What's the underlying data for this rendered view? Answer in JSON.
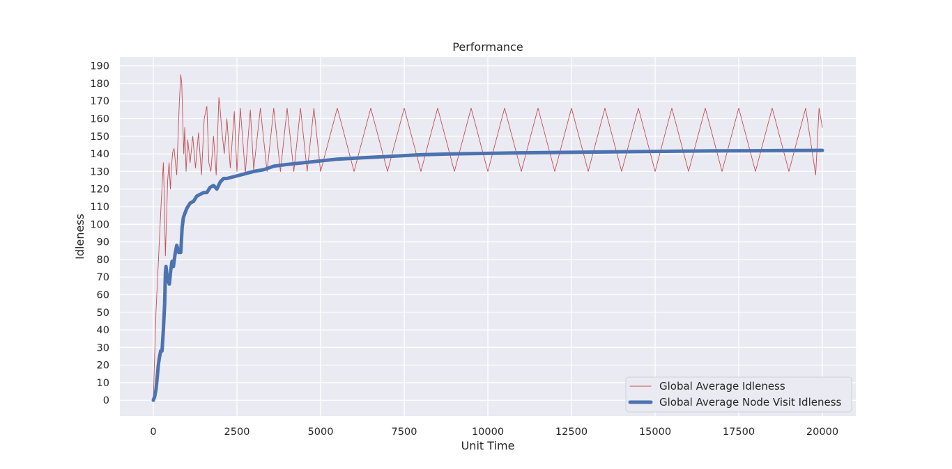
{
  "chart_data": {
    "type": "line",
    "title": "Performance",
    "xlabel": "Unit Time",
    "ylabel": "Idleness",
    "xlim": [
      -1000,
      21000
    ],
    "ylim": [
      -9,
      195
    ],
    "xticks": [
      0,
      2500,
      5000,
      7500,
      10000,
      12500,
      15000,
      17500,
      20000
    ],
    "yticks": [
      0,
      10,
      20,
      30,
      40,
      50,
      60,
      70,
      80,
      90,
      100,
      110,
      120,
      130,
      140,
      150,
      160,
      170,
      180,
      190
    ],
    "grid": true,
    "legend_position": "lower-right",
    "background": "#eaeaf2",
    "series": [
      {
        "name": "Global Average Idleness",
        "color": "#c44e52",
        "style": "thin",
        "x": [
          0,
          40,
          80,
          130,
          180,
          230,
          270,
          300,
          330,
          360,
          390,
          430,
          470,
          510,
          540,
          580,
          620,
          660,
          700,
          740,
          780,
          820,
          850,
          880,
          910,
          940,
          980,
          1030,
          1100,
          1180,
          1260,
          1350,
          1440,
          1520,
          1600,
          1660,
          1720,
          1800,
          1880,
          1960,
          2000,
          2040,
          2120,
          2200,
          2300,
          2420,
          2500,
          2600,
          2750,
          2900,
          3000,
          3200,
          3400,
          3600,
          3800,
          4000,
          4200,
          4400,
          4600,
          4800,
          5000,
          5500,
          6000,
          6500,
          7000,
          7500,
          8000,
          8500,
          9000,
          9500,
          10000,
          10500,
          11000,
          11500,
          12000,
          12500,
          13000,
          13500,
          14000,
          14500,
          15000,
          15500,
          16000,
          16500,
          17000,
          17500,
          18000,
          18500,
          19000,
          19500,
          19800,
          19900,
          20000
        ],
        "values": [
          0,
          25,
          50,
          70,
          90,
          110,
          125,
          135,
          115,
          82,
          100,
          125,
          135,
          120,
          132,
          141,
          143,
          135,
          128,
          150,
          170,
          185,
          180,
          160,
          140,
          155,
          130,
          148,
          135,
          150,
          132,
          152,
          128,
          160,
          167,
          135,
          130,
          150,
          128,
          172,
          165,
          155,
          140,
          160,
          132,
          164,
          130,
          166,
          129,
          165,
          131,
          166,
          130,
          166,
          130,
          166,
          130,
          166,
          130,
          166,
          130,
          166,
          130,
          166,
          130,
          166,
          130,
          166,
          130,
          166,
          130,
          166,
          130,
          166,
          130,
          166,
          130,
          166,
          130,
          166,
          130,
          166,
          130,
          166,
          130,
          166,
          130,
          166,
          130,
          166,
          128,
          166,
          155
        ]
      },
      {
        "name": "Global Average Node Visit Idleness",
        "color": "#4c72b0",
        "style": "thick",
        "x": [
          0,
          40,
          80,
          120,
          150,
          180,
          220,
          260,
          300,
          340,
          360,
          380,
          400,
          440,
          480,
          520,
          560,
          600,
          650,
          700,
          760,
          820,
          860,
          900,
          940,
          1000,
          1100,
          1200,
          1300,
          1400,
          1500,
          1600,
          1700,
          1800,
          1900,
          2000,
          2100,
          2200,
          2400,
          2600,
          2800,
          3000,
          3300,
          3600,
          4000,
          4500,
          5000,
          5500,
          6000,
          7000,
          8000,
          9000,
          10000,
          11000,
          12000,
          13000,
          14000,
          15000,
          16000,
          17000,
          18000,
          19000,
          20000
        ],
        "values": [
          0,
          2,
          6,
          14,
          20,
          24,
          28,
          28,
          40,
          55,
          72,
          76,
          72,
          68,
          66,
          74,
          79,
          76,
          83,
          88,
          84,
          84,
          98,
          104,
          106,
          109,
          112,
          113,
          116,
          117,
          118,
          118,
          121,
          122,
          120,
          124,
          126,
          126,
          127,
          128,
          129,
          130,
          131,
          133,
          134,
          135,
          136,
          137,
          137.5,
          138.5,
          139.5,
          140,
          140.3,
          140.6,
          140.8,
          141,
          141.2,
          141.4,
          141.6,
          141.7,
          141.8,
          141.9,
          142
        ]
      }
    ]
  }
}
